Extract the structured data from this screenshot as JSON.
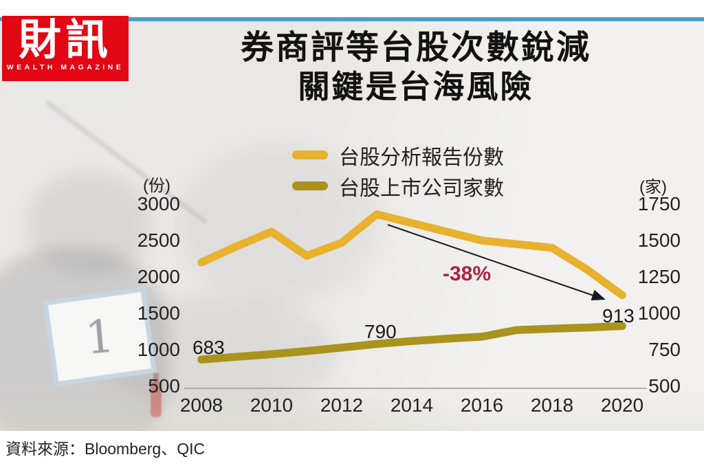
{
  "logo": {
    "brand": "財訊",
    "tagline": "WEALTH MAGAZINE"
  },
  "title": {
    "line1": "券商評等台股次數銳減",
    "line2": "關鍵是台海風險"
  },
  "legend": {
    "items": [
      {
        "label": "台股分析報告份數",
        "color": "#e8b12e"
      },
      {
        "label": "台股上市公司家數",
        "color": "#a9931d"
      }
    ]
  },
  "annotations": {
    "reports_change": "-38%",
    "change_color": "#b02240",
    "companies_2008": "683",
    "companies_2013": "790",
    "companies_2020": "913"
  },
  "source": "資料來源：Bloomberg、QIC",
  "background": {
    "sign_text": "1"
  },
  "chart_data": {
    "type": "line",
    "title": "券商評等台股次數銳減 關鍵是台海風險",
    "x": [
      2008,
      2009,
      2010,
      2011,
      2012,
      2013,
      2014,
      2015,
      2016,
      2017,
      2018,
      2019,
      2020
    ],
    "x_ticks": [
      "2008",
      "2010",
      "2012",
      "2014",
      "2016",
      "2018",
      "2020"
    ],
    "left_axis": {
      "unit": "(份)",
      "ticks": [
        "3000",
        "2500",
        "2000",
        "1500",
        "1000",
        "500"
      ],
      "range": [
        500,
        3000
      ]
    },
    "right_axis": {
      "unit": "(家)",
      "ticks": [
        "1750",
        "1500",
        "1250",
        "1000",
        "750",
        "500"
      ],
      "range": [
        500,
        1750
      ]
    },
    "series": [
      {
        "name": "台股分析報告份數",
        "axis": "left",
        "color": "#e8b12e",
        "values": [
          2200,
          2420,
          2620,
          2290,
          2470,
          2860,
          2740,
          2620,
          2500,
          2450,
          2400,
          2100,
          1750
        ]
      },
      {
        "name": "台股上市公司家數",
        "axis": "right",
        "color": "#a9931d",
        "values": [
          683,
          702,
          720,
          741,
          765,
          790,
          810,
          826,
          840,
          886,
          895,
          903,
          913
        ]
      }
    ],
    "grid": false,
    "legend_position": "top-center",
    "annotation_change_from_peak": "-38%"
  }
}
